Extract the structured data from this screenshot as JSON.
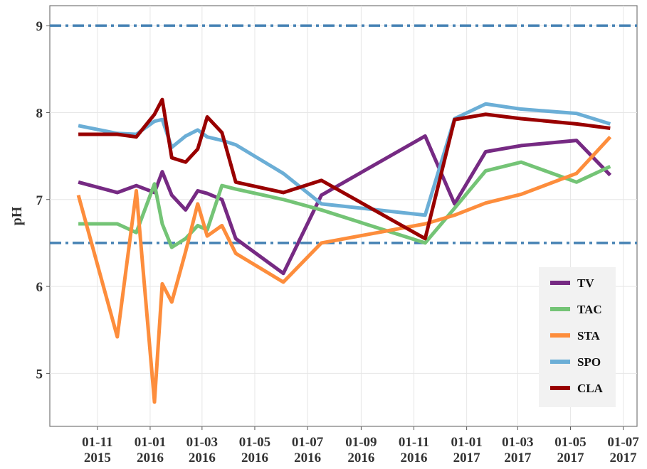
{
  "chart_data": {
    "type": "line",
    "ylabel": "pH",
    "x": [
      "2015-10-10",
      "2015-11-24",
      "2015-12-16",
      "2016-01-06",
      "2016-01-15",
      "2016-01-26",
      "2016-02-11",
      "2016-02-25",
      "2016-03-07",
      "2016-03-24",
      "2016-04-09",
      "2016-06-03",
      "2016-07-17",
      "2016-11-14",
      "2016-12-18",
      "2017-01-23",
      "2017-03-05",
      "2017-05-08",
      "2017-06-16"
    ],
    "series": [
      {
        "name": "TV",
        "color": "#762a83",
        "values": [
          7.2,
          7.08,
          7.16,
          7.08,
          7.32,
          7.05,
          6.88,
          7.1,
          7.07,
          7.0,
          6.55,
          6.15,
          7.05,
          7.73,
          6.95,
          7.55,
          7.62,
          7.68,
          7.28
        ]
      },
      {
        "name": "TAC",
        "color": "#74c476",
        "values": [
          6.72,
          6.72,
          6.62,
          7.18,
          6.72,
          6.45,
          6.55,
          6.7,
          6.65,
          7.16,
          7.12,
          7.0,
          6.88,
          6.5,
          6.9,
          7.33,
          7.43,
          7.2,
          7.38
        ]
      },
      {
        "name": "STA",
        "color": "#fd8d3c",
        "values": [
          7.05,
          5.42,
          7.1,
          4.67,
          6.03,
          5.82,
          6.4,
          6.95,
          6.58,
          6.7,
          6.38,
          6.05,
          6.5,
          6.72,
          6.82,
          6.96,
          7.06,
          7.3,
          7.72
        ]
      },
      {
        "name": "SPO",
        "color": "#6baed6",
        "values": [
          7.85,
          7.76,
          7.75,
          7.9,
          7.92,
          7.6,
          7.73,
          7.8,
          7.72,
          7.68,
          7.63,
          7.3,
          6.95,
          6.82,
          7.93,
          8.1,
          8.04,
          7.99,
          7.87
        ]
      },
      {
        "name": "CLA",
        "color": "#990000",
        "values": [
          7.75,
          7.75,
          7.72,
          7.98,
          8.15,
          7.48,
          7.43,
          7.58,
          7.95,
          7.77,
          7.2,
          7.08,
          7.22,
          6.55,
          7.92,
          7.98,
          7.93,
          7.87,
          7.82
        ]
      }
    ],
    "reference_lines": [
      {
        "value": 9,
        "color": "#4682b4"
      },
      {
        "value": 6.5,
        "color": "#4682b4"
      }
    ],
    "xlim": [
      "2015-09-07",
      "2017-07-17"
    ],
    "xticks": [
      {
        "value": "2015-11-01",
        "label": "01-11 2015"
      },
      {
        "value": "2016-01-01",
        "label": "01-01 2016"
      },
      {
        "value": "2016-03-01",
        "label": "01-03 2016"
      },
      {
        "value": "2016-05-01",
        "label": "01-05 2016"
      },
      {
        "value": "2016-07-01",
        "label": "01-07 2016"
      },
      {
        "value": "2016-09-01",
        "label": "01-09 2016"
      },
      {
        "value": "2016-11-01",
        "label": "01-11 2016"
      },
      {
        "value": "2017-01-01",
        "label": "01-01 2017"
      },
      {
        "value": "2017-03-01",
        "label": "01-03 2017"
      },
      {
        "value": "2017-05-01",
        "label": "01-05 2017"
      },
      {
        "value": "2017-07-01",
        "label": "01-07 2017"
      }
    ],
    "ylim": [
      4.39,
      9.23
    ],
    "yticks": [
      5,
      6,
      7,
      8,
      9
    ],
    "grid": true,
    "legend": "lower right"
  }
}
